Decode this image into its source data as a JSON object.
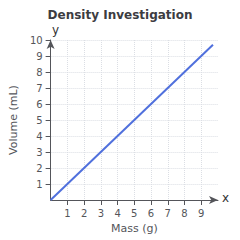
{
  "chart_data": {
    "type": "line",
    "title": "Density Investigation",
    "xlabel": "Mass (g)",
    "ylabel": "Volume (mL)",
    "x": [
      0,
      9.7
    ],
    "values": [
      0,
      9.7
    ],
    "xlim": [
      0,
      10
    ],
    "ylim": [
      0,
      10
    ],
    "xticks": [
      1,
      2,
      3,
      4,
      5,
      6,
      7,
      8,
      9
    ],
    "yticks": [
      1,
      2,
      3,
      4,
      5,
      6,
      7,
      8,
      9,
      10
    ],
    "grid": true,
    "annotations": [
      "x",
      "y"
    ]
  }
}
